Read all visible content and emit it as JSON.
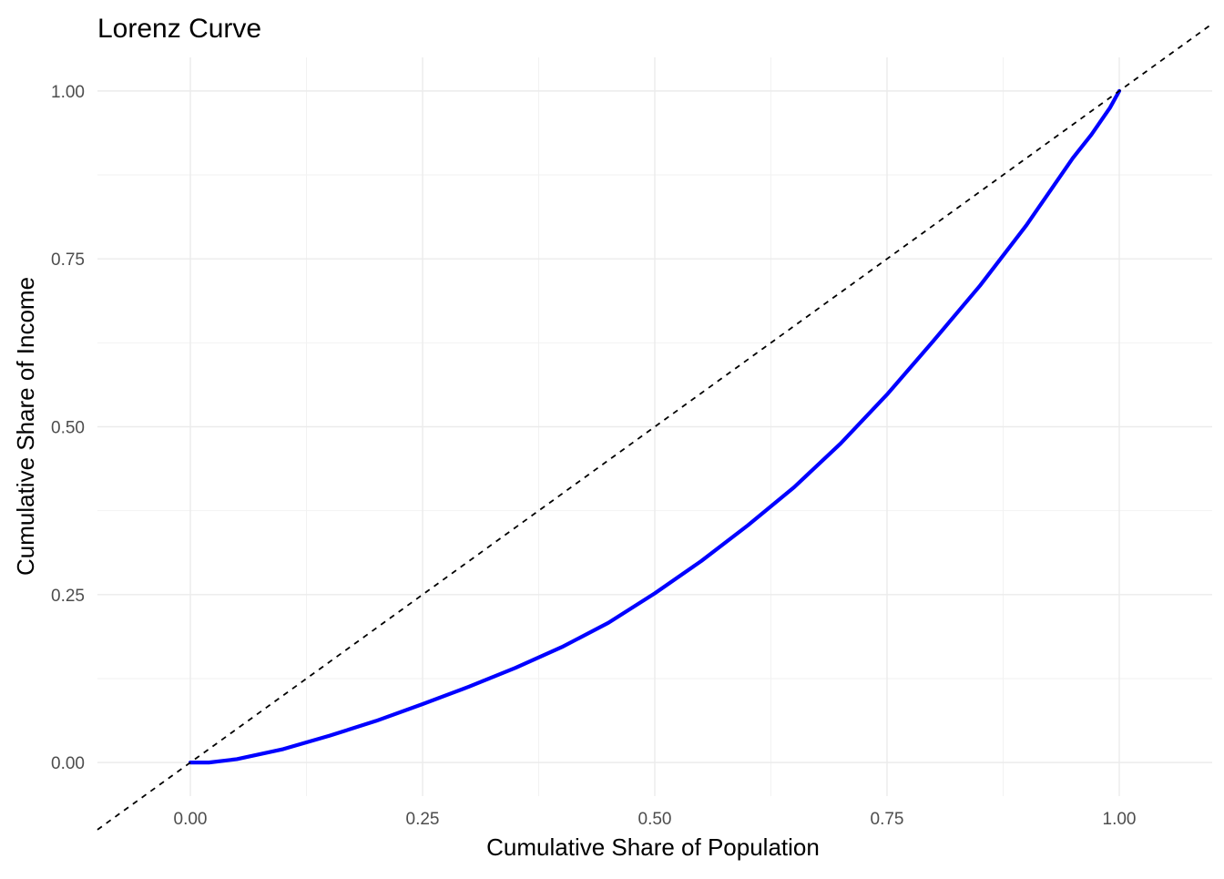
{
  "chart_data": {
    "type": "line",
    "title": "Lorenz Curve",
    "xlabel": "Cumulative Share of Population",
    "ylabel": "Cumulative Share of Income",
    "xlim": [
      -0.1,
      1.1
    ],
    "ylim": [
      -0.05,
      1.05
    ],
    "x_ticks": [
      "0.00",
      "0.25",
      "0.50",
      "0.75",
      "1.00"
    ],
    "y_ticks": [
      "0.00",
      "0.25",
      "0.50",
      "0.75",
      "1.00"
    ],
    "grid": true,
    "legend": "none",
    "series": [
      {
        "color": "#0000ff",
        "line_style": "solid",
        "x": [
          0.0,
          0.02,
          0.05,
          0.1,
          0.15,
          0.2,
          0.25,
          0.3,
          0.35,
          0.4,
          0.45,
          0.5,
          0.55,
          0.6,
          0.65,
          0.7,
          0.75,
          0.8,
          0.85,
          0.9,
          0.93,
          0.95,
          0.97,
          0.99,
          1.0
        ],
        "y": [
          0.0,
          0.0,
          0.005,
          0.02,
          0.04,
          0.062,
          0.087,
          0.113,
          0.141,
          0.172,
          0.208,
          0.252,
          0.3,
          0.353,
          0.41,
          0.475,
          0.548,
          0.628,
          0.71,
          0.8,
          0.86,
          0.9,
          0.935,
          0.975,
          1.0
        ]
      },
      {
        "color": "#000000",
        "line_style": "dashed",
        "x": [
          -0.1,
          1.1
        ],
        "y": [
          -0.1,
          1.1
        ]
      }
    ]
  }
}
